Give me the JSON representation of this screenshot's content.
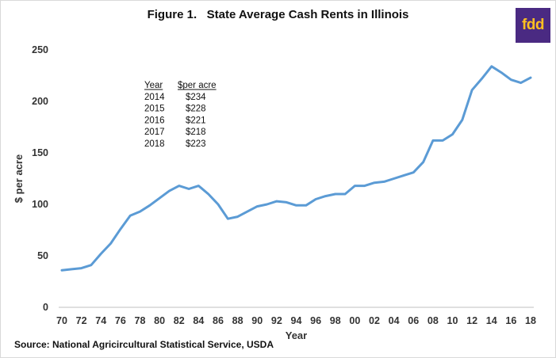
{
  "header": {
    "title": "Figure 1.   State Average Cash Rents in Illinois",
    "logo_text": "fdd"
  },
  "footer": {
    "source": "Source: National Agricircultural Statistical Service, USDA"
  },
  "colors": {
    "line": "#5b9bd5",
    "logo_bg": "#4a2a82",
    "logo_text": "#ffc020"
  },
  "chart_data": {
    "type": "line",
    "title": "Figure 1.   State Average Cash Rents in Illinois",
    "xlabel": "Year",
    "ylabel": "$ per acre",
    "ylim": [
      0,
      250
    ],
    "yticks": [
      0,
      50,
      100,
      150,
      200,
      250
    ],
    "xticks": [
      "70",
      "72",
      "74",
      "76",
      "78",
      "80",
      "82",
      "84",
      "86",
      "88",
      "90",
      "92",
      "94",
      "96",
      "98",
      "00",
      "02",
      "04",
      "06",
      "08",
      "10",
      "12",
      "14",
      "16",
      "18"
    ],
    "grid": false,
    "legend": "none",
    "series": [
      {
        "x": [
          1970,
          1971,
          1972,
          1973,
          1974,
          1975,
          1976,
          1977,
          1978,
          1979,
          1980,
          1981,
          1982,
          1983,
          1984,
          1985,
          1986,
          1987,
          1988,
          1989,
          1990,
          1991,
          1992,
          1993,
          1994,
          1995,
          1996,
          1997,
          1998,
          1999,
          2000,
          2001,
          2002,
          2003,
          2004,
          2005,
          2006,
          2007,
          2008,
          2009,
          2010,
          2011,
          2012,
          2013,
          2014,
          2015,
          2016,
          2017,
          2018
        ],
        "values": [
          36,
          37,
          38,
          41,
          52,
          62,
          76,
          89,
          93,
          99,
          106,
          113,
          118,
          115,
          118,
          110,
          100,
          86,
          88,
          93,
          98,
          100,
          103,
          102,
          99,
          99,
          105,
          108,
          110,
          110,
          118,
          118,
          121,
          122,
          125,
          128,
          131,
          141,
          162,
          162,
          168,
          182,
          211,
          222,
          234,
          228,
          221,
          218,
          223
        ]
      }
    ],
    "inset_table": {
      "headers": [
        "Year",
        "$per acre"
      ],
      "rows": [
        [
          "2014",
          "$234"
        ],
        [
          "2015",
          "$228"
        ],
        [
          "2016",
          "$221"
        ],
        [
          "2017",
          "$218"
        ],
        [
          "2018",
          "$223"
        ]
      ]
    }
  }
}
